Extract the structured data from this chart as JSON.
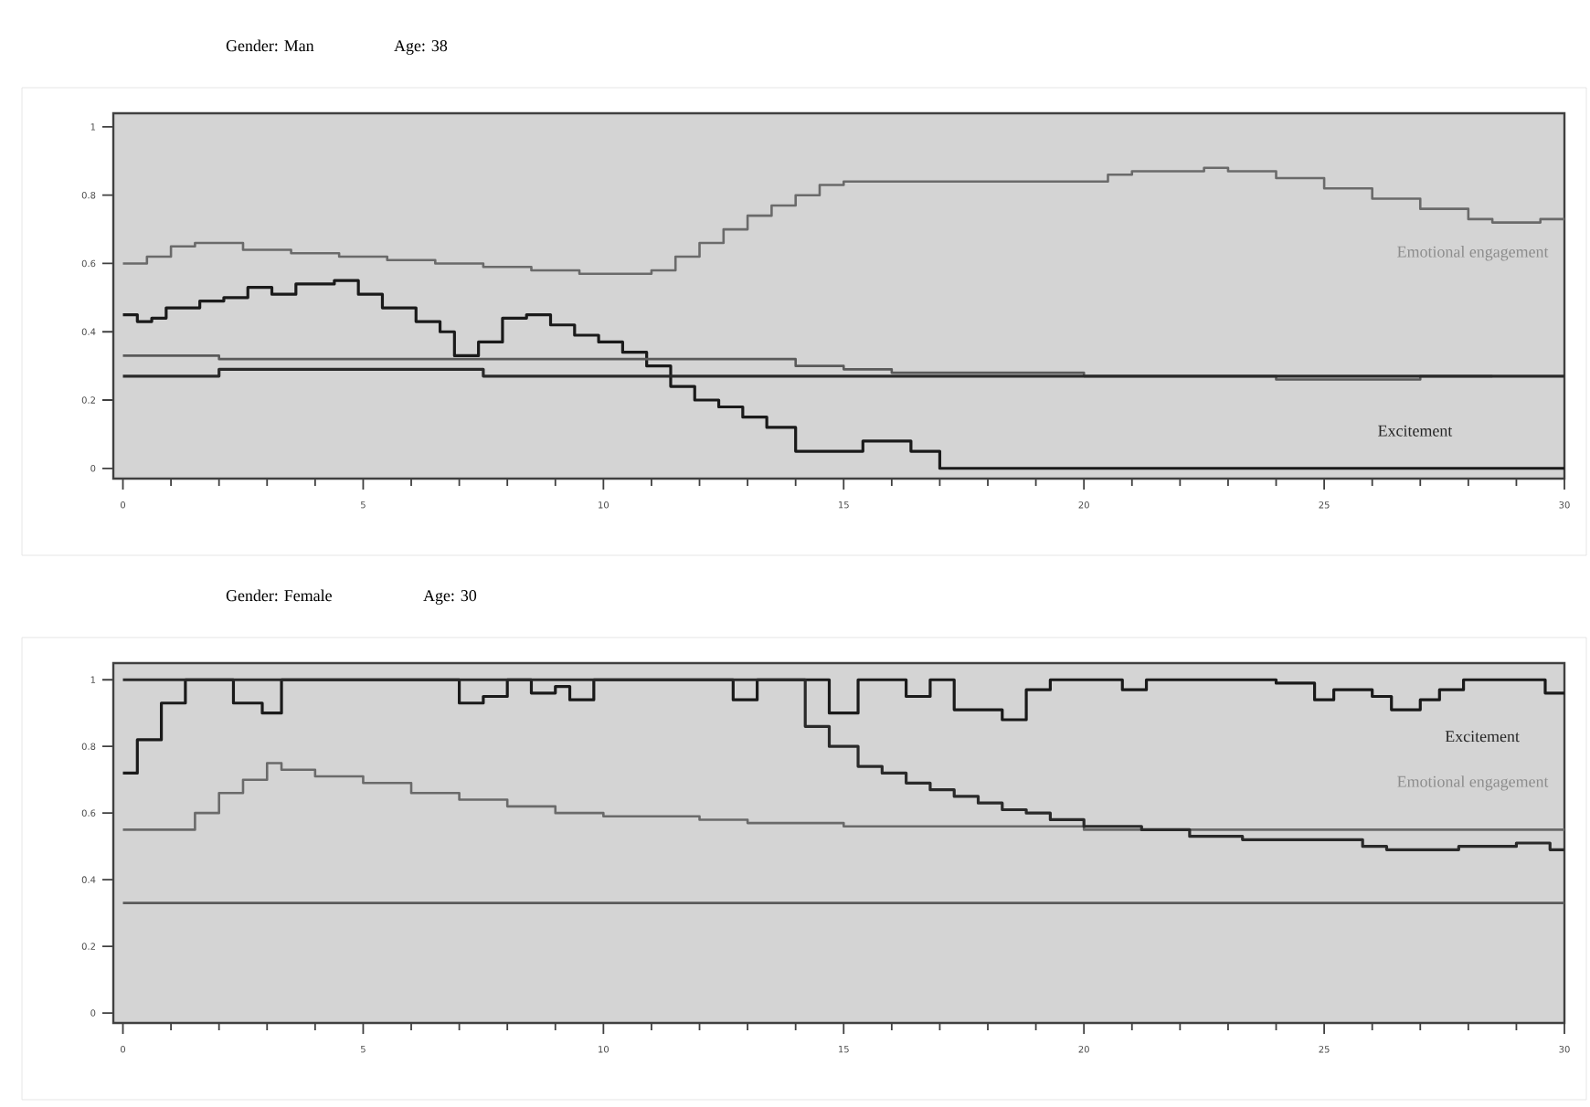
{
  "chart_data": [
    {
      "type": "step",
      "title": "Gender: Man",
      "subtitle": "Age: 38",
      "xlim": [
        -0.2,
        30
      ],
      "ylim": [
        -0.03,
        1.04
      ],
      "xticks": [
        0,
        5,
        10,
        15,
        20,
        25,
        30
      ],
      "yticks": [
        0,
        0.2,
        0.4,
        0.6,
        0.8,
        1
      ],
      "series": [
        {
          "name": "Emotional engagement",
          "color": "#6a6a6a",
          "x": [
            0,
            0.5,
            1,
            1.5,
            2.5,
            3.5,
            4.5,
            5.5,
            6.5,
            7.5,
            8.5,
            9.5,
            11,
            11.5,
            12,
            12.5,
            13,
            13.5,
            14,
            14.5,
            15,
            20,
            20.5,
            21,
            22.5,
            23,
            24,
            25,
            26,
            27,
            28,
            28.5,
            29.5,
            30
          ],
          "values": [
            0.6,
            0.62,
            0.65,
            0.66,
            0.64,
            0.63,
            0.62,
            0.61,
            0.6,
            0.59,
            0.58,
            0.57,
            0.58,
            0.62,
            0.66,
            0.7,
            0.74,
            0.77,
            0.8,
            0.83,
            0.84,
            0.84,
            0.86,
            0.87,
            0.88,
            0.87,
            0.85,
            0.82,
            0.79,
            0.76,
            0.73,
            0.72,
            0.73,
            0.73
          ]
        },
        {
          "name": "Excitement",
          "color": "#1a1a1a",
          "x": [
            0,
            0.3,
            0.6,
            0.9,
            1.6,
            2.1,
            2.6,
            3.1,
            3.6,
            4.4,
            4.9,
            5.4,
            6.1,
            6.6,
            6.9,
            7.4,
            7.9,
            8.4,
            8.9,
            9.4,
            9.9,
            10.4,
            10.9,
            11.4,
            11.9,
            12.4,
            12.9,
            13.4,
            14,
            15.4,
            16.4,
            17,
            30
          ],
          "values": [
            0.45,
            0.43,
            0.44,
            0.47,
            0.49,
            0.5,
            0.53,
            0.51,
            0.54,
            0.55,
            0.51,
            0.47,
            0.43,
            0.4,
            0.33,
            0.37,
            0.44,
            0.45,
            0.42,
            0.39,
            0.37,
            0.34,
            0.3,
            0.24,
            0.2,
            0.18,
            0.15,
            0.12,
            0.05,
            0.08,
            0.05,
            0,
            0
          ]
        },
        {
          "color": "#5a5a5a",
          "x": [
            0,
            2,
            13,
            14,
            15,
            16,
            18,
            20,
            24,
            27,
            28.5
          ],
          "values": [
            0.33,
            0.32,
            0.32,
            0.3,
            0.29,
            0.28,
            0.28,
            0.27,
            0.26,
            0.27,
            0.27
          ]
        },
        {
          "color": "#2a2a2a",
          "x": [
            0,
            2,
            7.5,
            30
          ],
          "values": [
            0.27,
            0.29,
            0.27,
            0.27
          ]
        }
      ]
    },
    {
      "type": "step",
      "title": "Gender: Female",
      "subtitle": "Age: 30",
      "xlim": [
        -0.2,
        30
      ],
      "ylim": [
        -0.03,
        1.05
      ],
      "xticks": [
        0,
        5,
        10,
        15,
        20,
        25,
        30
      ],
      "yticks": [
        0,
        0.2,
        0.4,
        0.6,
        0.8,
        1
      ],
      "series": [
        {
          "name": "Excitement",
          "color": "#1a1a1a",
          "x": [
            0,
            0.3,
            0.8,
            1.3,
            2.3,
            2.9,
            3.3,
            7,
            7.5,
            8,
            8.5,
            9,
            9.3,
            9.8,
            12.7,
            13.2,
            14.7,
            15.3,
            16.3,
            16.8,
            17.3,
            18.3,
            18.8,
            19.3,
            20.8,
            21.3,
            24,
            24.8,
            25.2,
            26,
            26.4,
            27,
            27.4,
            27.9,
            29.6,
            30
          ],
          "values": [
            0.72,
            0.82,
            0.93,
            1,
            0.93,
            0.9,
            1,
            0.93,
            0.95,
            1,
            0.96,
            0.98,
            0.94,
            1,
            0.94,
            1,
            0.9,
            1,
            0.95,
            1,
            0.91,
            0.88,
            0.97,
            1,
            0.97,
            1,
            0.99,
            0.94,
            0.97,
            0.95,
            0.91,
            0.94,
            0.97,
            1,
            0.96,
            0.96
          ]
        },
        {
          "name": "Emotional engagement",
          "color": "#6a6a6a",
          "x": [
            0,
            1.5,
            2,
            2.5,
            3,
            3.3,
            4,
            5,
            6,
            7,
            8,
            9,
            10,
            12,
            13,
            15,
            17,
            20,
            30
          ],
          "values": [
            0.55,
            0.6,
            0.66,
            0.7,
            0.75,
            0.73,
            0.71,
            0.69,
            0.66,
            0.64,
            0.62,
            0.6,
            0.59,
            0.58,
            0.57,
            0.56,
            0.56,
            0.55,
            0.55
          ]
        },
        {
          "color": "#2a2a2a",
          "x": [
            0,
            14.2,
            14.7,
            15.3,
            15.8,
            16.3,
            16.8,
            17.3,
            17.8,
            18.3,
            18.8,
            19.3,
            20,
            21.2,
            22.2,
            23.3,
            25.8,
            26.3,
            27.8,
            29,
            29.7,
            30
          ],
          "values": [
            1,
            0.86,
            0.8,
            0.74,
            0.72,
            0.69,
            0.67,
            0.65,
            0.63,
            0.61,
            0.6,
            0.58,
            0.56,
            0.55,
            0.53,
            0.52,
            0.5,
            0.49,
            0.5,
            0.51,
            0.49,
            0.49
          ]
        },
        {
          "color": "#5a5a5a",
          "x": [
            0,
            30
          ],
          "values": [
            0.33,
            0.33
          ]
        }
      ]
    }
  ]
}
